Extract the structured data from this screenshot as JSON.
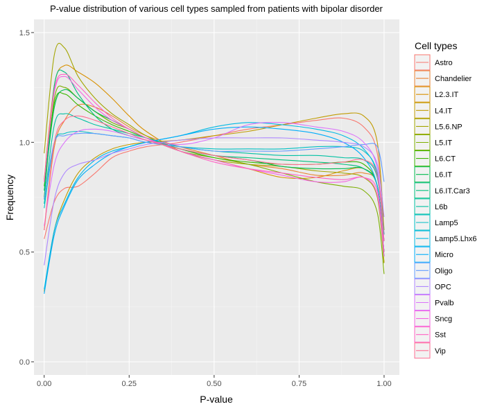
{
  "chart_data": {
    "type": "line",
    "title": "P-value distribution of various cell types sampled from patients with bipolar disorder",
    "xlabel": "P-value",
    "ylabel": "Frequency",
    "xlim": [
      -0.03,
      1.045
    ],
    "ylim": [
      -0.06,
      1.56
    ],
    "x_ticks": [
      0,
      0.25,
      0.5,
      0.75,
      1
    ],
    "x_tick_labels": [
      "0.00",
      "0.25",
      "0.50",
      "0.75",
      "1.00"
    ],
    "y_ticks": [
      0,
      0.5,
      1,
      1.5
    ],
    "y_tick_labels": [
      "0.0",
      "0.5",
      "1.0",
      "1.5"
    ],
    "grid": true,
    "legend": {
      "title": "Cell types",
      "position": "right"
    },
    "x": [
      0,
      0.03,
      0.06,
      0.1,
      0.15,
      0.2,
      0.25,
      0.3,
      0.4,
      0.5,
      0.6,
      0.7,
      0.8,
      0.88,
      0.94,
      0.98,
      1.0
    ],
    "series": [
      {
        "name": "Astro",
        "color": "#F8766D",
        "values": [
          0.56,
          0.73,
          0.79,
          0.8,
          0.86,
          0.93,
          0.96,
          0.98,
          1.0,
          1.03,
          1.06,
          1.08,
          1.1,
          1.11,
          1.07,
          0.95,
          0.58
        ]
      },
      {
        "name": "Chandelier",
        "color": "#EA8331",
        "values": [
          0.6,
          0.98,
          1.1,
          1.17,
          1.16,
          1.12,
          1.07,
          1.03,
          0.98,
          0.94,
          0.9,
          0.88,
          0.85,
          0.85,
          0.86,
          0.8,
          0.45
        ]
      },
      {
        "name": "L2.3.IT",
        "color": "#D89000",
        "values": [
          0.83,
          1.26,
          1.35,
          1.32,
          1.27,
          1.2,
          1.12,
          1.05,
          0.96,
          0.92,
          0.88,
          0.84,
          0.84,
          0.87,
          0.88,
          0.8,
          0.5
        ]
      },
      {
        "name": "L4.IT",
        "color": "#C09B00",
        "values": [
          0.32,
          0.6,
          0.74,
          0.86,
          0.93,
          0.97,
          0.99,
          1.0,
          1.01,
          1.03,
          1.05,
          1.08,
          1.11,
          1.13,
          1.12,
          1.0,
          0.6
        ]
      },
      {
        "name": "L5.6.NP",
        "color": "#A3A500",
        "values": [
          0.95,
          1.4,
          1.43,
          1.3,
          1.2,
          1.13,
          1.08,
          1.03,
          0.96,
          0.92,
          0.9,
          0.89,
          0.87,
          0.86,
          0.84,
          0.75,
          0.45
        ]
      },
      {
        "name": "L5.IT",
        "color": "#7CAE00",
        "values": [
          0.75,
          1.2,
          1.25,
          1.2,
          1.14,
          1.09,
          1.06,
          1.02,
          0.96,
          0.93,
          0.9,
          0.86,
          0.82,
          0.8,
          0.78,
          0.68,
          0.4
        ]
      },
      {
        "name": "L6.CT",
        "color": "#39B600",
        "values": [
          0.8,
          1.18,
          1.22,
          1.17,
          1.12,
          1.08,
          1.05,
          1.02,
          0.97,
          0.93,
          0.91,
          0.9,
          0.9,
          0.91,
          0.9,
          0.8,
          0.5
        ]
      },
      {
        "name": "L6.IT",
        "color": "#00BB4E",
        "values": [
          0.78,
          1.16,
          1.24,
          1.2,
          1.14,
          1.1,
          1.06,
          1.02,
          0.97,
          0.94,
          0.92,
          0.89,
          0.88,
          0.88,
          0.88,
          0.8,
          0.48
        ]
      },
      {
        "name": "L6.IT.Car3",
        "color": "#00BF7D",
        "values": [
          0.74,
          1.26,
          1.32,
          1.22,
          1.12,
          1.06,
          1.03,
          1.01,
          0.97,
          0.94,
          0.93,
          0.92,
          0.91,
          0.9,
          0.88,
          0.8,
          0.5
        ]
      },
      {
        "name": "L6b",
        "color": "#00C1A3",
        "values": [
          0.72,
          1.08,
          1.13,
          1.11,
          1.08,
          1.06,
          1.04,
          1.02,
          0.98,
          0.96,
          0.95,
          0.94,
          0.94,
          0.93,
          0.92,
          0.84,
          0.55
        ]
      },
      {
        "name": "Lamp5",
        "color": "#00BFC4",
        "values": [
          0.7,
          1.0,
          1.04,
          1.05,
          1.04,
          1.03,
          1.02,
          1.0,
          0.98,
          0.97,
          0.97,
          0.97,
          0.98,
          0.98,
          0.96,
          0.86,
          0.58
        ]
      },
      {
        "name": "Lamp5.Lhx6",
        "color": "#00B9E3",
        "values": [
          0.33,
          0.6,
          0.72,
          0.84,
          0.92,
          0.96,
          0.98,
          1.0,
          1.03,
          1.07,
          1.09,
          1.08,
          1.06,
          1.03,
          0.97,
          0.85,
          0.55
        ]
      },
      {
        "name": "Micro",
        "color": "#00ADFA",
        "values": [
          0.31,
          0.58,
          0.71,
          0.83,
          0.9,
          0.95,
          0.98,
          1.0,
          1.03,
          1.06,
          1.07,
          1.06,
          1.04,
          1.0,
          0.93,
          0.8,
          0.5
        ]
      },
      {
        "name": "Oligo",
        "color": "#619CFF",
        "values": [
          0.74,
          1.0,
          1.03,
          1.04,
          1.04,
          1.03,
          1.02,
          1.0,
          0.98,
          0.96,
          0.96,
          0.96,
          0.97,
          0.98,
          0.99,
          0.98,
          0.82
        ]
      },
      {
        "name": "OPC",
        "color": "#AE87FF",
        "values": [
          0.44,
          0.74,
          0.86,
          0.9,
          0.92,
          0.95,
          0.97,
          0.99,
          1.01,
          1.02,
          1.02,
          1.02,
          1.01,
          1.0,
          0.98,
          0.9,
          0.66
        ]
      },
      {
        "name": "Pvalb",
        "color": "#DB72FB",
        "values": [
          0.62,
          0.9,
          1.0,
          1.05,
          1.06,
          1.05,
          1.03,
          1.01,
          0.99,
          1.02,
          1.08,
          1.09,
          1.07,
          1.05,
          1.0,
          0.88,
          0.55
        ]
      },
      {
        "name": "Sncg",
        "color": "#F564E3",
        "values": [
          0.82,
          1.23,
          1.3,
          1.24,
          1.16,
          1.1,
          1.06,
          1.02,
          0.96,
          0.92,
          0.88,
          0.85,
          0.82,
          0.82,
          0.84,
          0.76,
          0.48
        ]
      },
      {
        "name": "Sst",
        "color": "#FF61C3",
        "values": [
          0.82,
          1.24,
          1.31,
          1.26,
          1.18,
          1.11,
          1.06,
          1.02,
          0.96,
          0.91,
          0.88,
          0.86,
          0.84,
          0.83,
          0.84,
          0.78,
          0.5
        ]
      },
      {
        "name": "Vip",
        "color": "#FF6C91",
        "values": [
          0.6,
          1.0,
          1.1,
          1.12,
          1.1,
          1.07,
          1.04,
          1.01,
          0.97,
          0.94,
          0.92,
          0.9,
          0.9,
          0.91,
          0.92,
          0.85,
          0.55
        ]
      }
    ]
  }
}
